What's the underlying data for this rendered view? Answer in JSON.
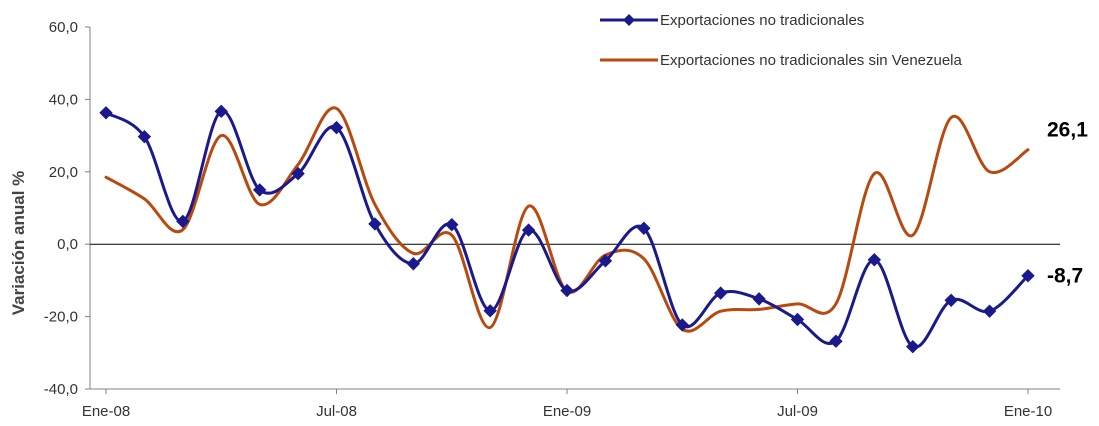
{
  "chart_data": {
    "type": "line",
    "ylabel": "Variación anual %",
    "ylim": [
      -40,
      60
    ],
    "yticks": [
      "-40,0",
      "-20,0",
      "0,0",
      "20,0",
      "40,0",
      "60,0"
    ],
    "ytick_values": [
      -40,
      -20,
      0,
      20,
      40,
      60
    ],
    "xticks": [
      "Ene-08",
      "Jul-08",
      "Ene-09",
      "Jul-09",
      "Ene-10"
    ],
    "xtick_index": [
      0,
      6,
      12,
      18,
      24
    ],
    "x_count": 25,
    "grid": false,
    "legend_position": "top-right",
    "colors": {
      "series1": "#1a1a8c",
      "series2": "#b84a10",
      "axis": "#808080",
      "zero_line": "#000000"
    },
    "series": [
      {
        "name": "Exportaciones no tradicionales",
        "values": [
          36.3,
          29.7,
          6.3,
          36.7,
          15.0,
          19.5,
          32.2,
          5.6,
          -5.4,
          5.4,
          -18.4,
          3.9,
          -12.8,
          -4.6,
          4.4,
          -22.3,
          -13.5,
          -15.1,
          -20.8,
          -26.8,
          -4.3,
          -28.3,
          -15.5,
          -18.5,
          -8.7
        ],
        "marker": "diamond",
        "end_label": "-8,7"
      },
      {
        "name": "Exportaciones no tradicionales sin Venezuela",
        "values": [
          18.5,
          12.5,
          4.0,
          30.0,
          11.0,
          22.0,
          37.5,
          11.0,
          -2.5,
          2.5,
          -23.0,
          10.5,
          -13.0,
          -3.0,
          -4.0,
          -23.5,
          -18.5,
          -18.0,
          -16.5,
          -16.5,
          19.5,
          2.5,
          35.0,
          20.0,
          26.1
        ],
        "marker": "none",
        "end_label": "26,1"
      }
    ]
  }
}
